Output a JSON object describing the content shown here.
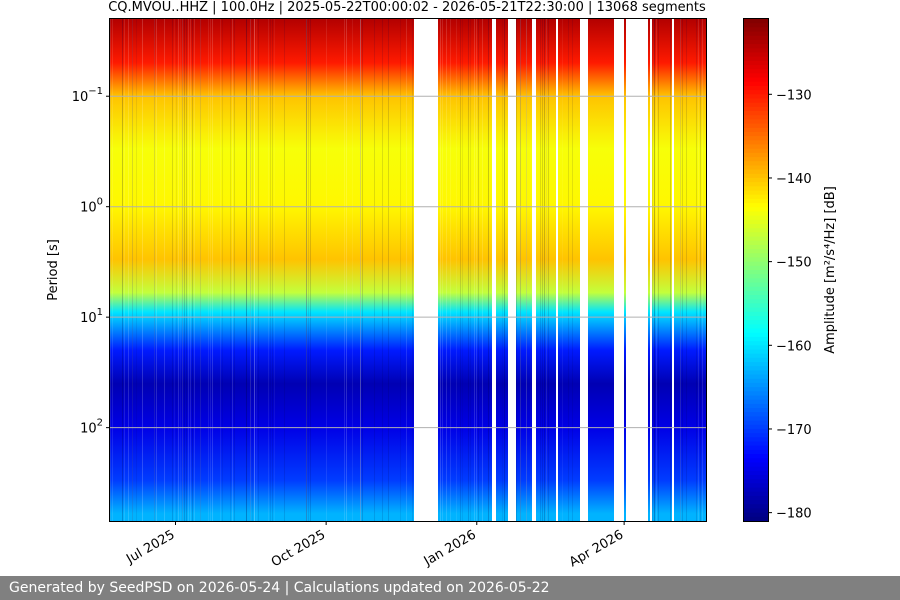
{
  "chart_data": {
    "type": "heatmap",
    "title": "CQ.MVOU..HHZ | 100.0Hz | 2025-05-22T00:00:02 - 2026-05-21T22:30:00 | 13068 segments",
    "xlabel": "",
    "ylabel": "Period [s]",
    "y_scale": "log",
    "y_inverted": true,
    "ylim": [
      0.02,
      700
    ],
    "y_ticks": [
      {
        "value": 0.1,
        "base": "10",
        "exp": "−1"
      },
      {
        "value": 1,
        "base": "10",
        "exp": "0"
      },
      {
        "value": 10,
        "base": "10",
        "exp": "1"
      },
      {
        "value": 100,
        "base": "10",
        "exp": "2"
      }
    ],
    "xlim": [
      "2025-05-22",
      "2026-05-21"
    ],
    "x_ticks": [
      {
        "date": "2025-07-01",
        "label": "Jul 2025"
      },
      {
        "date": "2025-10-01",
        "label": "Oct 2025"
      },
      {
        "date": "2026-01-01",
        "label": "Jan 2026"
      },
      {
        "date": "2026-04-01",
        "label": "Apr 2026"
      }
    ],
    "grid": "horizontal",
    "colormap": "jet",
    "colorbar": {
      "label": "Amplitude [m²/s⁴/Hz] [dB]",
      "range": [
        -181,
        -121
      ],
      "ticks": [
        -130,
        -140,
        -150,
        -160,
        -170,
        -180
      ],
      "tick_labels": [
        "−130",
        "−140",
        "−150",
        "−160",
        "−170",
        "−180"
      ]
    },
    "data_gaps": [
      [
        "2025-11-23",
        "2025-12-08"
      ],
      [
        "2026-01-10",
        "2026-01-12"
      ],
      [
        "2026-01-20",
        "2026-01-24"
      ],
      [
        "2026-02-03",
        "2026-02-05"
      ],
      [
        "2026-02-18",
        "2026-02-19"
      ],
      [
        "2026-03-04",
        "2026-03-09"
      ],
      [
        "2026-03-25",
        "2026-03-31"
      ],
      [
        "2026-04-01",
        "2026-04-15"
      ],
      [
        "2026-04-16",
        "2026-04-17"
      ],
      [
        "2026-04-30",
        "2026-05-01"
      ]
    ],
    "period_profile": [
      {
        "period": 0.02,
        "db": -124
      },
      {
        "period": 0.05,
        "db": -130
      },
      {
        "period": 0.1,
        "db": -140
      },
      {
        "period": 0.3,
        "db": -144
      },
      {
        "period": 1,
        "db": -143
      },
      {
        "period": 3,
        "db": -140
      },
      {
        "period": 6,
        "db": -147
      },
      {
        "period": 9,
        "db": -160
      },
      {
        "period": 20,
        "db": -172
      },
      {
        "period": 40,
        "db": -178
      },
      {
        "period": 100,
        "db": -175
      },
      {
        "period": 300,
        "db": -170
      },
      {
        "period": 600,
        "db": -163
      }
    ]
  },
  "footer": {
    "text": "Generated by SeedPSD on 2026-05-24 | Calculations updated on 2026-05-22"
  }
}
